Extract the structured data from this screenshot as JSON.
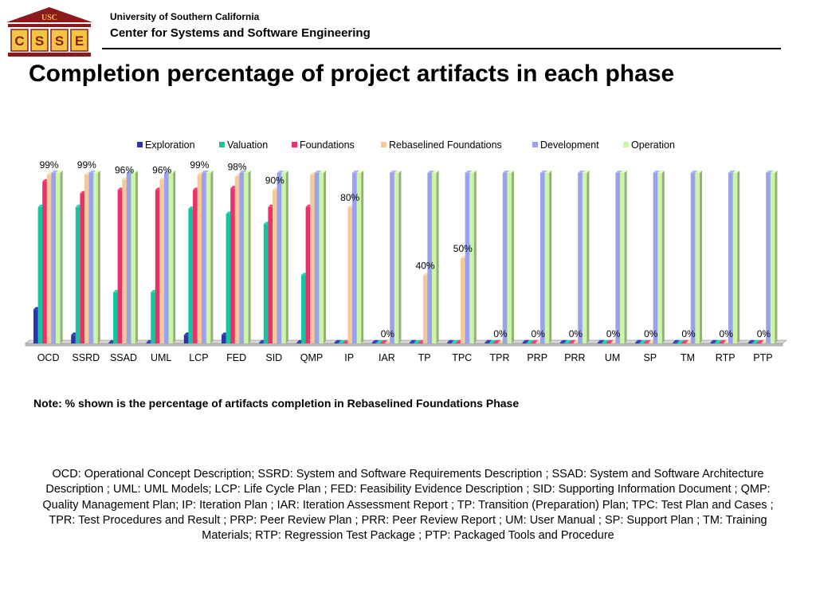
{
  "header": {
    "logo_top_text": "USC",
    "logo_letters": [
      "C",
      "S",
      "S",
      "E"
    ],
    "university": "University of Southern California",
    "center": "Center for Systems and Software Engineering"
  },
  "title": "Completion percentage of project artifacts in each phase",
  "note": "Note: % shown is the percentage of artifacts completion in Rebaselined Foundations Phase",
  "description": "OCD: Operational Concept Description; SSRD: System and Software Requirements Description ; SSAD: System and Software Architecture Description ; UML: UML Models; LCP: Life Cycle Plan ; FED: Feasibility Evidence Description ; SID: Supporting Information Document ;  QMP: Quality Management Plan;  IP: Iteration Plan ; IAR: Iteration Assessment Report ; TP: Transition (Preparation) Plan; TPC: Test Plan and Cases ; TPR: Test Procedures and Result ; PRP: Peer Review Plan ; PRR: Peer Review Report ; UM: User Manual ; SP: Support Plan ; TM: Training Materials; RTP: Regression Test Package ;  PTP: Packaged Tools and Procedure",
  "colors": {
    "Exploration": "#2a35a8",
    "Valuation": "#17c4a0",
    "Foundations": "#e8336a",
    "Rebaselined Foundations": "#f7c99a",
    "Development": "#9aa2ee",
    "Operation": "#ccf5a8"
  },
  "chart_data": {
    "type": "bar",
    "style": "3d-clustered",
    "legend_position": "top",
    "ylim": [
      0,
      100
    ],
    "grid": false,
    "categories": [
      "OCD",
      "SSRD",
      "SSAD",
      "UML",
      "LCP",
      "FED",
      "SID",
      "QMP",
      "IP",
      "IAR",
      "TP",
      "TPC",
      "TPR",
      "PRP",
      "PRR",
      "UM",
      "SP",
      "TM",
      "RTP",
      "PTP"
    ],
    "series": [
      {
        "name": "Exploration",
        "values": [
          20,
          5,
          0,
          0,
          5,
          5,
          0,
          0,
          0,
          0,
          0,
          0,
          0,
          0,
          0,
          0,
          0,
          0,
          0,
          0
        ]
      },
      {
        "name": "Valuation",
        "values": [
          80,
          80,
          30,
          30,
          79,
          76,
          70,
          40,
          0,
          0,
          0,
          0,
          0,
          0,
          0,
          0,
          0,
          0,
          0,
          0
        ]
      },
      {
        "name": "Foundations",
        "values": [
          95,
          88,
          90,
          90,
          90,
          91,
          80,
          80,
          0,
          0,
          0,
          0,
          0,
          0,
          0,
          0,
          0,
          0,
          0,
          0
        ]
      },
      {
        "name": "Rebaselined Foundations",
        "values": [
          99,
          99,
          96,
          96,
          99,
          98,
          90,
          99,
          80,
          0,
          40,
          50,
          0,
          0,
          0,
          0,
          0,
          0,
          0,
          0
        ]
      },
      {
        "name": "Development",
        "values": [
          100,
          100,
          100,
          100,
          100,
          100,
          100,
          100,
          100,
          100,
          100,
          100,
          100,
          100,
          100,
          100,
          100,
          100,
          100,
          100
        ]
      },
      {
        "name": "Operation",
        "values": [
          100,
          100,
          100,
          100,
          100,
          100,
          100,
          100,
          100,
          100,
          100,
          100,
          100,
          100,
          100,
          100,
          100,
          100,
          100,
          100
        ]
      }
    ],
    "data_labels": [
      "99%",
      "99%",
      "96%",
      "96%",
      "99%",
      "98%",
      "90%",
      "",
      "80%",
      "0%",
      "40%",
      "50%",
      "0%",
      "0%",
      "0%",
      "0%",
      "0%",
      "0%",
      "0%",
      "0%"
    ]
  }
}
